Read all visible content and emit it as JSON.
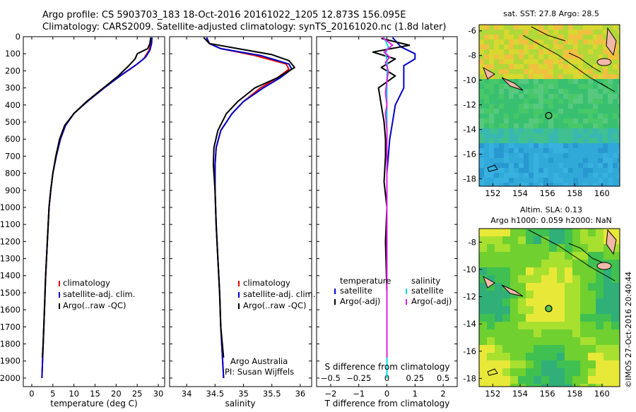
{
  "header": {
    "title_line1": "Argo profile: CS 5903703_183 18-Oct-2016 20161022_1205 12.873S 156.095E",
    "title_line2": "Climatology: CARS2009. Satellite-adjusted climatology: synTS_20161020.nc (1.8d later)"
  },
  "colors": {
    "climatology": "#e00000",
    "satellite": "#0000cc",
    "argo": "#000000",
    "sat_salinity": "#00e0e0",
    "argo_salinity": "#e020e0"
  },
  "chart_data": [
    {
      "type": "line",
      "name": "temperature",
      "xlabel": "temperature (deg C)",
      "ylabel": "",
      "xlim": [
        -2,
        31.5
      ],
      "ylim": [
        2050,
        0
      ],
      "xticks": [
        0,
        5,
        10,
        15,
        20,
        25,
        30
      ],
      "xtick_labels": [
        "0",
        "5",
        "10",
        "15",
        "20",
        "25",
        "30"
      ],
      "yticks": [
        0,
        100,
        200,
        300,
        400,
        500,
        600,
        700,
        800,
        900,
        1000,
        1100,
        1200,
        1300,
        1400,
        1500,
        1600,
        1700,
        1800,
        1900,
        2000
      ],
      "ytick_labels": [
        "0",
        "100",
        "200",
        "300",
        "400",
        "500",
        "600",
        "700",
        "800",
        "900",
        "1000",
        "1100",
        "1200",
        "1300",
        "1400",
        "1500",
        "1600",
        "1700",
        "1800",
        "1900",
        "2000"
      ],
      "legend": [
        "climatology",
        "satellite-adj. clim.",
        "Argo(..raw -QC)"
      ],
      "series": [
        {
          "name": "climatology",
          "color_key": "climatology",
          "points": [
            [
              28.3,
              5
            ],
            [
              28.3,
              40
            ],
            [
              27.8,
              80
            ],
            [
              26.5,
              130
            ],
            [
              24.5,
              170
            ],
            [
              21,
              230
            ],
            [
              17,
              300
            ],
            [
              13,
              380
            ],
            [
              10,
              450
            ],
            [
              8,
              520
            ],
            [
              6.8,
              600
            ],
            [
              5.8,
              700
            ],
            [
              5,
              800
            ],
            [
              4.5,
              900
            ],
            [
              4.1,
              1000
            ],
            [
              3.7,
              1200
            ],
            [
              3.3,
              1400
            ],
            [
              3,
              1600
            ],
            [
              2.7,
              1800
            ],
            [
              2.4,
              2000
            ]
          ]
        },
        {
          "name": "satellite-adj. clim.",
          "color_key": "satellite",
          "points": [
            [
              28.5,
              5
            ],
            [
              28.4,
              40
            ],
            [
              28,
              80
            ],
            [
              27,
              120
            ],
            [
              25,
              160
            ],
            [
              21.5,
              220
            ],
            [
              17.2,
              300
            ],
            [
              13.2,
              380
            ],
            [
              10,
              450
            ],
            [
              8,
              520
            ],
            [
              6.8,
              600
            ],
            [
              5.8,
              700
            ],
            [
              5,
              800
            ],
            [
              4.5,
              900
            ],
            [
              4.1,
              1000
            ],
            [
              3.7,
              1200
            ],
            [
              3.3,
              1400
            ],
            [
              3,
              1600
            ],
            [
              2.7,
              1800
            ],
            [
              2.4,
              2000
            ]
          ]
        },
        {
          "name": "Argo(..raw -QC)",
          "color_key": "argo",
          "points": [
            [
              28.2,
              5
            ],
            [
              28,
              40
            ],
            [
              27.5,
              70
            ],
            [
              25,
              100
            ],
            [
              24.5,
              130
            ],
            [
              23,
              170
            ],
            [
              20.5,
              230
            ],
            [
              17,
              300
            ],
            [
              13,
              380
            ],
            [
              10,
              450
            ],
            [
              7.8,
              520
            ],
            [
              6.6,
              600
            ],
            [
              5.7,
              700
            ],
            [
              5,
              800
            ],
            [
              4.5,
              900
            ],
            [
              4.1,
              1000
            ],
            [
              3.7,
              1200
            ],
            [
              3.3,
              1400
            ],
            [
              3,
              1600
            ],
            [
              2.7,
              1800
            ],
            [
              2.5,
              1880
            ]
          ]
        }
      ]
    },
    {
      "type": "line",
      "name": "salinity",
      "xlabel": "salinity",
      "ylabel": "",
      "xlim": [
        33.7,
        36.2
      ],
      "ylim": [
        2050,
        0
      ],
      "xticks": [
        34,
        34.5,
        35,
        35.5,
        36
      ],
      "xtick_labels": [
        "34",
        "34.5",
        "35",
        "35.5",
        "36"
      ],
      "legend": [
        "climatology",
        "satellite-adj. clim.",
        "Argo(..raw -QC)"
      ],
      "annotation": [
        "Argo Australia",
        "PI: Susan Wijffels"
      ],
      "series": [
        {
          "name": "climatology",
          "color_key": "climatology",
          "points": [
            [
              34.35,
              5
            ],
            [
              34.4,
              40
            ],
            [
              34.6,
              70
            ],
            [
              35.2,
              110
            ],
            [
              35.75,
              160
            ],
            [
              35.8,
              190
            ],
            [
              35.6,
              240
            ],
            [
              35.3,
              300
            ],
            [
              35,
              380
            ],
            [
              34.8,
              450
            ],
            [
              34.6,
              550
            ],
            [
              34.52,
              650
            ],
            [
              34.5,
              750
            ],
            [
              34.5,
              900
            ],
            [
              34.52,
              1100
            ],
            [
              34.55,
              1300
            ],
            [
              34.58,
              1500
            ],
            [
              34.6,
              1700
            ],
            [
              34.65,
              2000
            ]
          ]
        },
        {
          "name": "satellite-adj. clim.",
          "color_key": "satellite",
          "points": [
            [
              34.35,
              5
            ],
            [
              34.4,
              40
            ],
            [
              34.6,
              70
            ],
            [
              35.3,
              110
            ],
            [
              35.8,
              160
            ],
            [
              35.85,
              190
            ],
            [
              35.65,
              240
            ],
            [
              35.35,
              300
            ],
            [
              35,
              380
            ],
            [
              34.8,
              450
            ],
            [
              34.6,
              550
            ],
            [
              34.52,
              650
            ],
            [
              34.5,
              750
            ],
            [
              34.5,
              900
            ],
            [
              34.52,
              1100
            ],
            [
              34.55,
              1300
            ],
            [
              34.58,
              1500
            ],
            [
              34.6,
              1700
            ],
            [
              34.65,
              2000
            ]
          ]
        },
        {
          "name": "Argo(..raw -QC)",
          "color_key": "argo",
          "points": [
            [
              34.3,
              5
            ],
            [
              34.4,
              40
            ],
            [
              34.9,
              70
            ],
            [
              35.5,
              105
            ],
            [
              35.8,
              140
            ],
            [
              35.9,
              180
            ],
            [
              35.6,
              240
            ],
            [
              35.2,
              300
            ],
            [
              34.9,
              380
            ],
            [
              34.7,
              450
            ],
            [
              34.55,
              550
            ],
            [
              34.48,
              650
            ],
            [
              34.47,
              750
            ],
            [
              34.5,
              900
            ],
            [
              34.52,
              1100
            ],
            [
              34.55,
              1300
            ],
            [
              34.58,
              1500
            ],
            [
              34.6,
              1700
            ],
            [
              34.65,
              1880
            ]
          ]
        }
      ]
    },
    {
      "type": "line",
      "name": "difference",
      "xlabel_top": "S difference from climatology",
      "xlabel": "T difference from climatology",
      "xlim": [
        -2.5,
        2.5
      ],
      "ylim": [
        2050,
        0
      ],
      "xticks_T": [
        -2,
        -1,
        0,
        1,
        2
      ],
      "xtick_labels_T": [
        "−2",
        "−1",
        "0",
        "1",
        "2"
      ],
      "xticks_S": [
        -0.5,
        -0.25,
        0,
        0.25,
        0.5
      ],
      "xtick_labels_S": [
        "−0.5",
        "−0.25",
        "0",
        "0.25",
        "0.5"
      ],
      "legend_temperature": {
        "heading": "temperature",
        "items": [
          "satellite",
          "Argo(-adj)"
        ]
      },
      "legend_salinity": {
        "heading": "salinity",
        "items": [
          "satellite",
          "Argo(-adj)"
        ]
      },
      "series": [
        {
          "name": "T satellite",
          "color_key": "satellite",
          "points": [
            [
              0.2,
              5
            ],
            [
              0.5,
              60
            ],
            [
              1,
              100
            ],
            [
              1,
              130
            ],
            [
              0.6,
              170
            ],
            [
              0.6,
              220
            ],
            [
              0.6,
              300
            ],
            [
              0.3,
              400
            ],
            [
              0.2,
              500
            ],
            [
              0.1,
              600
            ],
            [
              0.05,
              700
            ],
            [
              0,
              800
            ],
            [
              0,
              1000
            ],
            [
              0,
              1400
            ],
            [
              0,
              2000
            ]
          ]
        },
        {
          "name": "T Argo(-adj)",
          "color_key": "argo",
          "points": [
            [
              -0.2,
              10
            ],
            [
              0.8,
              50
            ],
            [
              -0.5,
              90
            ],
            [
              0.3,
              130
            ],
            [
              -0.2,
              180
            ],
            [
              0.3,
              230
            ],
            [
              -0.3,
              300
            ],
            [
              -0.2,
              400
            ],
            [
              -0.1,
              500
            ],
            [
              -0.05,
              600
            ],
            [
              -0.05,
              700
            ],
            [
              -0.1,
              850
            ],
            [
              0,
              1000
            ],
            [
              -0.05,
              1200
            ],
            [
              0,
              1500
            ],
            [
              0,
              1880
            ]
          ]
        },
        {
          "name": "S satellite",
          "color_key": "sat_salinity",
          "points": [
            [
              -0.1,
              5
            ],
            [
              0.05,
              60
            ],
            [
              -0.05,
              100
            ],
            [
              0.02,
              150
            ],
            [
              0,
              250
            ],
            [
              0,
              400
            ],
            [
              0,
              800
            ],
            [
              0,
              1200
            ],
            [
              0,
              1600
            ],
            [
              0,
              2000
            ]
          ]
        },
        {
          "name": "S Argo(-adj)",
          "color_key": "argo_salinity",
          "points": [
            [
              -0.15,
              5
            ],
            [
              0.2,
              50
            ],
            [
              -0.1,
              90
            ],
            [
              0.1,
              120
            ],
            [
              -0.05,
              150
            ],
            [
              0.05,
              200
            ],
            [
              0,
              260
            ],
            [
              -0.05,
              330
            ],
            [
              0,
              400
            ],
            [
              -0.05,
              450
            ],
            [
              0,
              550
            ],
            [
              0,
              700
            ],
            [
              0,
              900
            ],
            [
              0,
              1200
            ],
            [
              0,
              1500
            ],
            [
              0,
              1880
            ]
          ]
        }
      ]
    },
    {
      "type": "heatmap",
      "name": "sst_map",
      "title": "sat. SST: 27.8 Argo: 28.5",
      "xlim": [
        151,
        161.3
      ],
      "ylim": [
        -18.6,
        -5.5
      ],
      "xticks": [
        152,
        154,
        156,
        158,
        160
      ],
      "xtick_labels": [
        "152",
        "154",
        "156",
        "158",
        "160"
      ],
      "yticks": [
        -6,
        -8,
        -10,
        -12,
        -14,
        -16,
        -18
      ],
      "ytick_labels": [
        "-6",
        "-8",
        "-10",
        "-12",
        "-14",
        "-16",
        "-18"
      ],
      "marker": {
        "lon": 156.095,
        "lat": -12.873
      }
    },
    {
      "type": "heatmap",
      "name": "sla_map",
      "title_line1": "Altim. SLA: 0.13",
      "title_line2": "Argo h1000: 0.059 h2000: NaN",
      "xlim": [
        151,
        161.3
      ],
      "ylim": [
        -18.6,
        -7
      ],
      "xticks": [
        152,
        154,
        156,
        158,
        160
      ],
      "xtick_labels": [
        "152",
        "154",
        "156",
        "158",
        "160"
      ],
      "yticks": [
        -8,
        -10,
        -12,
        -14,
        -16,
        -18
      ],
      "ytick_labels": [
        "-8",
        "-10",
        "-12",
        "-14",
        "-16",
        "-18"
      ],
      "marker": {
        "lon": 156.095,
        "lat": -12.873
      }
    }
  ],
  "footer": {
    "imos_credit": "©IMOS 27-Oct-2016 20:40:44"
  }
}
